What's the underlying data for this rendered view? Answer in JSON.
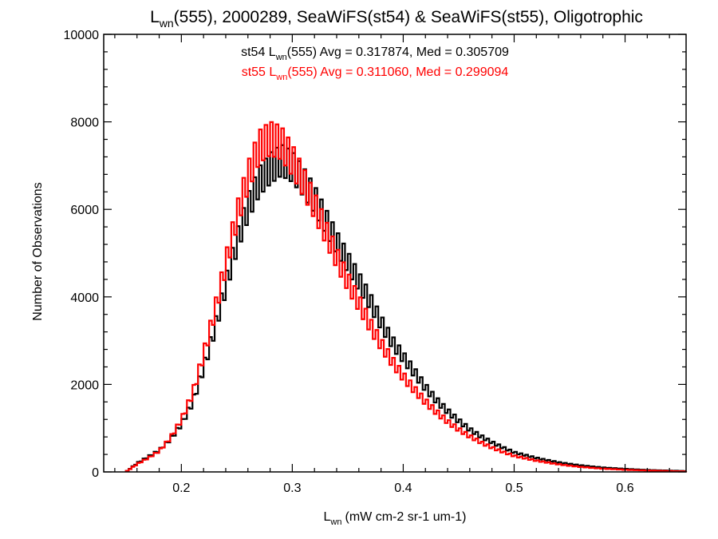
{
  "chart_data": {
    "type": "line",
    "title": {
      "prefix": "L",
      "sub": "wn",
      "rest": "(555), 2000289, SeaWiFS(st54) & SeaWiFS(st55), Oligotrophic"
    },
    "xlabel": {
      "prefix": "L",
      "sub": "wn",
      "units": "(mW cm-2 sr-1 um-1)"
    },
    "ylabel": "Number of Observations",
    "xlim": [
      0.13,
      0.655
    ],
    "ylim": [
      0,
      10000
    ],
    "x_ticks": [
      0.2,
      0.3,
      0.4,
      0.5,
      0.6
    ],
    "x_tick_labels": [
      "0.2",
      "0.3",
      "0.4",
      "0.5",
      "0.6"
    ],
    "y_ticks": [
      0,
      2000,
      4000,
      6000,
      8000,
      10000
    ],
    "y_tick_labels": [
      "0",
      "2000",
      "4000",
      "6000",
      "8000",
      "10000"
    ],
    "grid": false,
    "annotations": [
      {
        "series": "st54",
        "prefix": "st54 L",
        "sub": "wn",
        "rest": "(555) Avg = 0.317874, Med = 0.305709",
        "color": "#000000"
      },
      {
        "series": "st55",
        "prefix": "st55 L",
        "sub": "wn",
        "rest": "(555) Avg = 0.311060, Med = 0.299094",
        "color": "#ff0000"
      }
    ],
    "series": [
      {
        "name": "st54",
        "color": "#000000",
        "x": [
          0.15,
          0.16,
          0.17,
          0.18,
          0.19,
          0.2,
          0.21,
          0.22,
          0.23,
          0.24,
          0.25,
          0.26,
          0.27,
          0.28,
          0.29,
          0.3,
          0.31,
          0.32,
          0.33,
          0.34,
          0.35,
          0.36,
          0.37,
          0.38,
          0.39,
          0.4,
          0.41,
          0.42,
          0.43,
          0.44,
          0.45,
          0.46,
          0.47,
          0.48,
          0.49,
          0.5,
          0.52,
          0.54,
          0.56,
          0.58,
          0.6,
          0.62,
          0.64,
          0.655
        ],
        "values": [
          0,
          200,
          350,
          500,
          750,
          1100,
          1600,
          2400,
          3300,
          4300,
          5300,
          6100,
          6700,
          7000,
          7200,
          7050,
          6700,
          6300,
          5800,
          5300,
          4850,
          4400,
          3950,
          3450,
          3000,
          2650,
          2300,
          1950,
          1650,
          1400,
          1180,
          980,
          820,
          680,
          560,
          450,
          320,
          220,
          150,
          100,
          70,
          45,
          30,
          20
        ]
      },
      {
        "name": "st55",
        "color": "#ff0000",
        "x": [
          0.15,
          0.16,
          0.17,
          0.18,
          0.19,
          0.2,
          0.21,
          0.22,
          0.23,
          0.24,
          0.25,
          0.26,
          0.27,
          0.28,
          0.29,
          0.3,
          0.31,
          0.32,
          0.33,
          0.34,
          0.35,
          0.36,
          0.37,
          0.38,
          0.39,
          0.4,
          0.41,
          0.42,
          0.43,
          0.44,
          0.45,
          0.46,
          0.47,
          0.48,
          0.49,
          0.5,
          0.52,
          0.54,
          0.56,
          0.58,
          0.6,
          0.62,
          0.64,
          0.655
        ],
        "values": [
          0,
          180,
          320,
          480,
          780,
          1200,
          1800,
          2700,
          3700,
          4800,
          5900,
          6800,
          7500,
          7700,
          7600,
          7200,
          6700,
          6150,
          5550,
          4950,
          4400,
          3900,
          3400,
          2950,
          2550,
          2200,
          1900,
          1620,
          1380,
          1160,
          980,
          820,
          680,
          560,
          460,
          370,
          260,
          175,
          115,
          75,
          50,
          32,
          20,
          12
        ]
      }
    ]
  }
}
